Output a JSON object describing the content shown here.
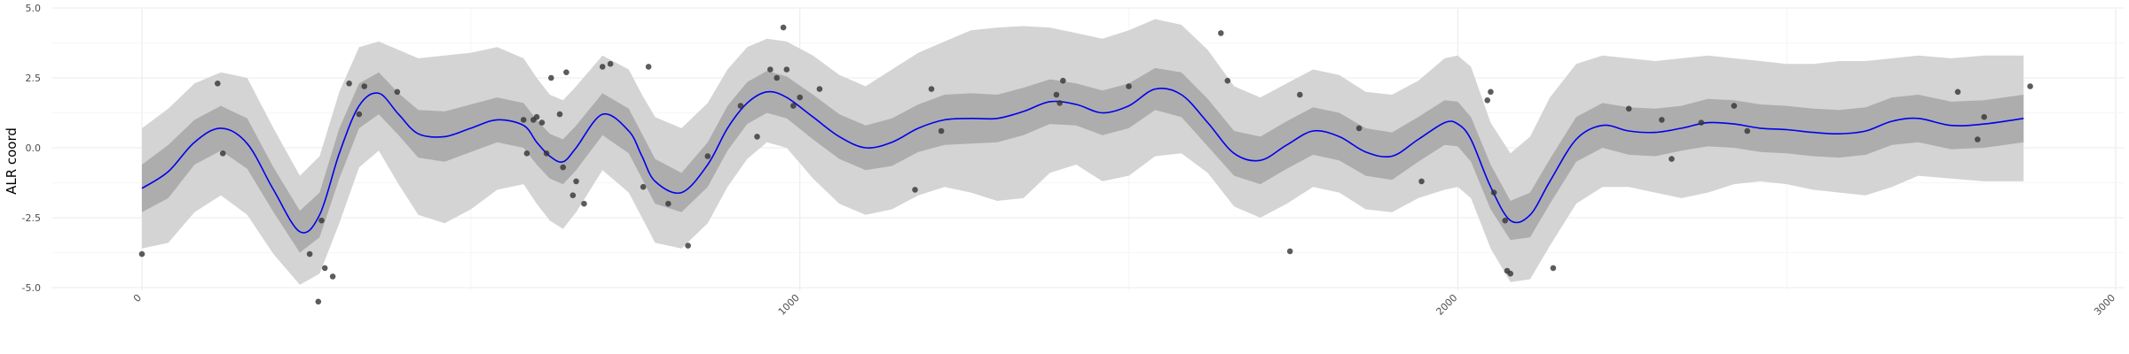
{
  "chart_data": {
    "type": "line",
    "title": "",
    "xlabel": "",
    "ylabel": "ALR coord",
    "xlim": [
      -100,
      3000
    ],
    "ylim": [
      -5.6,
      5.0
    ],
    "x_ticks": [
      0,
      1000,
      2000,
      3000
    ],
    "x_tick_labels": [
      "0",
      "1000",
      "2000",
      "3000"
    ],
    "y_ticks": [
      -5.0,
      -2.5,
      0.0,
      2.5,
      5.0
    ],
    "y_tick_labels": [
      "-5.0",
      "-2.5",
      "0.0",
      "2.5",
      "5.0"
    ],
    "grid": true,
    "legend": "none",
    "colors": {
      "mean_line": "#0000ee",
      "inner_band": "#adadad",
      "outer_band": "#d4d4d4",
      "points": "#333333",
      "grid": "#ebebeb"
    },
    "mean": {
      "x": [
        0,
        40,
        80,
        120,
        160,
        200,
        240,
        270,
        300,
        330,
        360,
        390,
        420,
        460,
        500,
        540,
        580,
        600,
        620,
        640,
        660,
        700,
        740,
        760,
        780,
        820,
        860,
        890,
        920,
        950,
        980,
        1020,
        1060,
        1100,
        1140,
        1180,
        1220,
        1260,
        1300,
        1340,
        1380,
        1420,
        1460,
        1500,
        1540,
        1580,
        1620,
        1660,
        1700,
        1740,
        1780,
        1820,
        1860,
        1900,
        1940,
        1980,
        2000,
        2020,
        2050,
        2080,
        2110,
        2140,
        2180,
        2220,
        2260,
        2300,
        2340,
        2380,
        2420,
        2460,
        2500,
        2540,
        2580,
        2620,
        2660,
        2700,
        2750,
        2800,
        2860
      ],
      "y": [
        -1.45,
        -0.85,
        0.2,
        0.7,
        0.15,
        -1.5,
        -3.0,
        -2.4,
        -0.2,
        1.5,
        1.95,
        1.2,
        0.5,
        0.4,
        0.7,
        1.0,
        0.8,
        0.2,
        -0.3,
        -0.5,
        0.0,
        1.2,
        0.6,
        -0.3,
        -1.2,
        -1.6,
        -0.6,
        0.7,
        1.6,
        2.0,
        1.8,
        1.1,
        0.4,
        0.0,
        0.2,
        0.7,
        1.0,
        1.05,
        1.05,
        1.3,
        1.65,
        1.55,
        1.25,
        1.5,
        2.1,
        1.9,
        0.9,
        -0.2,
        -0.45,
        0.1,
        0.6,
        0.4,
        -0.15,
        -0.3,
        0.3,
        0.9,
        0.85,
        0.3,
        -1.4,
        -2.6,
        -2.4,
        -1.2,
        0.3,
        0.8,
        0.6,
        0.55,
        0.7,
        0.9,
        0.85,
        0.7,
        0.65,
        0.55,
        0.5,
        0.6,
        0.95,
        1.05,
        0.8,
        0.85,
        1.05
      ]
    },
    "inner_band": {
      "x": [
        0,
        40,
        80,
        120,
        160,
        200,
        240,
        270,
        300,
        330,
        360,
        390,
        420,
        460,
        500,
        540,
        580,
        600,
        620,
        640,
        660,
        700,
        740,
        760,
        780,
        820,
        860,
        890,
        920,
        950,
        980,
        1020,
        1060,
        1100,
        1140,
        1180,
        1220,
        1260,
        1300,
        1340,
        1380,
        1420,
        1460,
        1500,
        1540,
        1580,
        1620,
        1660,
        1700,
        1740,
        1780,
        1820,
        1860,
        1900,
        1940,
        1980,
        2000,
        2020,
        2050,
        2080,
        2110,
        2140,
        2180,
        2220,
        2260,
        2300,
        2340,
        2380,
        2420,
        2460,
        2500,
        2540,
        2580,
        2620,
        2660,
        2700,
        2750,
        2800,
        2860
      ],
      "lower": [
        -2.3,
        -1.8,
        -0.6,
        -0.1,
        -0.75,
        -2.3,
        -3.75,
        -3.2,
        -1.1,
        0.7,
        1.2,
        0.45,
        -0.35,
        -0.5,
        -0.15,
        0.2,
        0.0,
        -0.6,
        -1.1,
        -1.3,
        -0.8,
        0.45,
        -0.2,
        -1.1,
        -2.0,
        -2.3,
        -1.4,
        -0.1,
        0.85,
        1.25,
        1.05,
        0.3,
        -0.4,
        -0.8,
        -0.65,
        -0.15,
        0.1,
        0.15,
        0.2,
        0.45,
        0.85,
        0.8,
        0.45,
        0.7,
        1.35,
        1.1,
        0.05,
        -1.0,
        -1.3,
        -0.75,
        -0.25,
        -0.45,
        -1.0,
        -1.15,
        -0.5,
        0.1,
        0.05,
        -0.5,
        -2.2,
        -3.3,
        -3.2,
        -2.0,
        -0.5,
        0.0,
        -0.25,
        -0.3,
        -0.1,
        0.05,
        0.0,
        -0.15,
        -0.2,
        -0.3,
        -0.35,
        -0.25,
        0.1,
        0.2,
        -0.05,
        0.0,
        0.2
      ],
      "upper": [
        -0.6,
        0.1,
        1.0,
        1.5,
        1.05,
        -0.7,
        -2.25,
        -1.6,
        0.7,
        2.3,
        2.7,
        1.95,
        1.35,
        1.3,
        1.55,
        1.8,
        1.6,
        1.0,
        0.5,
        0.3,
        0.8,
        1.95,
        1.4,
        0.5,
        -0.4,
        -0.9,
        0.2,
        1.5,
        2.35,
        2.75,
        2.55,
        1.9,
        1.2,
        0.8,
        1.05,
        1.55,
        1.9,
        1.95,
        1.9,
        2.15,
        2.45,
        2.3,
        2.05,
        2.3,
        2.85,
        2.7,
        1.75,
        0.6,
        0.4,
        0.95,
        1.45,
        1.25,
        0.7,
        0.55,
        1.1,
        1.7,
        1.65,
        1.1,
        -0.6,
        -1.9,
        -1.6,
        -0.4,
        1.1,
        1.6,
        1.45,
        1.4,
        1.5,
        1.75,
        1.7,
        1.55,
        1.5,
        1.4,
        1.35,
        1.45,
        1.8,
        1.9,
        1.65,
        1.7,
        1.9
      ]
    },
    "outer_band": {
      "x": [
        0,
        40,
        80,
        120,
        160,
        200,
        240,
        270,
        300,
        330,
        360,
        390,
        420,
        460,
        500,
        540,
        580,
        600,
        620,
        640,
        660,
        700,
        740,
        760,
        780,
        820,
        860,
        890,
        920,
        950,
        980,
        1020,
        1060,
        1100,
        1140,
        1180,
        1220,
        1260,
        1300,
        1340,
        1380,
        1420,
        1460,
        1500,
        1540,
        1580,
        1620,
        1660,
        1700,
        1740,
        1780,
        1820,
        1860,
        1900,
        1940,
        1980,
        2000,
        2020,
        2050,
        2080,
        2110,
        2140,
        2180,
        2220,
        2260,
        2300,
        2340,
        2380,
        2420,
        2460,
        2500,
        2540,
        2580,
        2620,
        2660,
        2700,
        2750,
        2800,
        2860
      ],
      "lower": [
        -3.6,
        -3.4,
        -2.3,
        -1.7,
        -2.4,
        -3.8,
        -4.9,
        -4.5,
        -2.7,
        -0.7,
        -0.1,
        -1.3,
        -2.4,
        -2.7,
        -2.2,
        -1.5,
        -1.3,
        -2.0,
        -2.6,
        -2.9,
        -2.3,
        -0.8,
        -1.6,
        -2.5,
        -3.4,
        -3.6,
        -2.7,
        -1.4,
        -0.4,
        0.2,
        0.0,
        -1.1,
        -2.0,
        -2.4,
        -2.2,
        -1.7,
        -1.4,
        -1.6,
        -1.9,
        -1.8,
        -0.9,
        -0.6,
        -1.2,
        -1.0,
        -0.3,
        -0.2,
        -0.9,
        -2.1,
        -2.5,
        -2.0,
        -1.4,
        -1.6,
        -2.2,
        -2.3,
        -1.8,
        -1.5,
        -1.4,
        -1.8,
        -3.6,
        -4.8,
        -4.7,
        -3.5,
        -2.0,
        -1.4,
        -1.4,
        -1.6,
        -1.8,
        -1.6,
        -1.3,
        -1.2,
        -1.3,
        -1.5,
        -1.6,
        -1.7,
        -1.4,
        -1.0,
        -1.1,
        -1.2,
        -1.2
      ],
      "upper": [
        0.7,
        1.4,
        2.3,
        2.7,
        2.5,
        0.7,
        -1.0,
        -0.3,
        2.0,
        3.6,
        3.8,
        3.5,
        3.2,
        3.3,
        3.4,
        3.6,
        3.2,
        2.5,
        1.9,
        1.7,
        2.2,
        3.3,
        2.8,
        1.9,
        1.1,
        0.7,
        1.6,
        2.8,
        3.6,
        3.9,
        3.8,
        3.3,
        2.6,
        2.2,
        2.8,
        3.4,
        3.8,
        4.2,
        4.3,
        4.35,
        4.3,
        4.1,
        3.9,
        4.2,
        4.6,
        4.4,
        3.5,
        2.2,
        1.8,
        2.3,
        2.8,
        2.6,
        2.0,
        1.9,
        2.4,
        3.2,
        3.3,
        2.9,
        0.9,
        -0.2,
        0.4,
        1.8,
        3.0,
        3.3,
        3.2,
        3.1,
        3.2,
        3.3,
        3.2,
        3.1,
        3.0,
        3.0,
        3.1,
        3.1,
        3.2,
        3.3,
        3.2,
        3.3,
        3.3
      ]
    },
    "points": {
      "x": [
        0,
        115,
        123,
        255,
        268,
        273,
        278,
        290,
        315,
        330,
        338,
        388,
        580,
        585,
        595,
        600,
        608,
        615,
        622,
        635,
        640,
        645,
        655,
        660,
        672,
        700,
        712,
        762,
        770,
        800,
        830,
        860,
        910,
        935,
        955,
        965,
        975,
        980,
        990,
        1000,
        1030,
        1175,
        1200,
        1215,
        1390,
        1395,
        1400,
        1500,
        1640,
        1650,
        1745,
        1760,
        1850,
        1945,
        2045,
        2050,
        2055,
        2072,
        2075,
        2080,
        2145,
        2260,
        2310,
        2325,
        2370,
        2420,
        2440,
        2760,
        2790,
        2800,
        2870
      ],
      "y": [
        -3.8,
        2.3,
        -0.2,
        -3.8,
        -5.5,
        -2.6,
        -4.3,
        -4.6,
        2.3,
        1.2,
        2.2,
        2.0,
        1.0,
        -0.2,
        1.0,
        1.1,
        0.9,
        -0.2,
        2.5,
        1.2,
        -0.7,
        2.7,
        -1.7,
        -1.2,
        -2.0,
        2.9,
        3.0,
        -1.4,
        2.9,
        -2.0,
        -3.5,
        -0.3,
        1.5,
        0.4,
        2.8,
        2.5,
        4.3,
        2.8,
        1.5,
        1.8,
        2.1,
        -1.5,
        2.1,
        0.6,
        1.9,
        1.6,
        2.4,
        2.2,
        4.1,
        2.4,
        -3.7,
        1.9,
        0.7,
        -1.2,
        1.7,
        2.0,
        -1.6,
        -2.6,
        -4.4,
        -4.5,
        -4.3,
        1.4,
        1.0,
        -0.4,
        0.9,
        1.5,
        0.6,
        2.0,
        0.3,
        1.1,
        2.2
      ]
    }
  }
}
